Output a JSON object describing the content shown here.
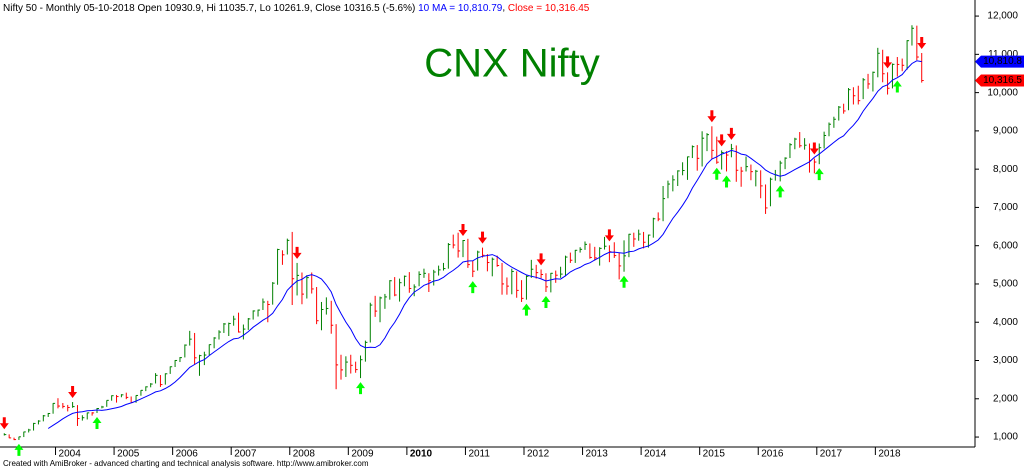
{
  "chart_data": {
    "type": "ohlc",
    "title": "CNX Nifty",
    "header": {
      "info": "Nifty 50 - Monthly 05-10-2018 Open 10930.9, Hi 11035.7, Lo 10261.9, Close 10316.5 (-5.6%)",
      "ma": "10 MA = 10,810.79",
      "close": "Close = 10,316.45"
    },
    "footer": "Created with AmiBroker - advanced charting and technical analysis software. http://www.amibroker.com",
    "ylim": [
      740,
      12420
    ],
    "yticks": [
      {
        "value": 1000,
        "label": "1,000"
      },
      {
        "value": 2000,
        "label": "2,000"
      },
      {
        "value": 3000,
        "label": "3,000"
      },
      {
        "value": 4000,
        "label": "4,000"
      },
      {
        "value": 5000,
        "label": "5,000"
      },
      {
        "value": 6000,
        "label": "6,000"
      },
      {
        "value": 7000,
        "label": "7,000"
      },
      {
        "value": 8000,
        "label": "8,000"
      },
      {
        "value": 9000,
        "label": "9,000"
      },
      {
        "value": 10000,
        "label": "10,000"
      },
      {
        "value": 11000,
        "label": "11,000"
      },
      {
        "value": 12000,
        "label": "12,000"
      }
    ],
    "categories": [
      null,
      null,
      null,
      null,
      null,
      null,
      null,
      null,
      null,
      null,
      null,
      "2004",
      null,
      null,
      null,
      null,
      null,
      null,
      null,
      null,
      null,
      null,
      null,
      "2005",
      null,
      null,
      null,
      null,
      null,
      null,
      null,
      null,
      null,
      null,
      null,
      "2006",
      null,
      null,
      null,
      null,
      null,
      null,
      null,
      null,
      null,
      null,
      null,
      "2007",
      null,
      null,
      null,
      null,
      null,
      null,
      null,
      null,
      null,
      null,
      null,
      "2008",
      null,
      null,
      null,
      null,
      null,
      null,
      null,
      null,
      null,
      null,
      null,
      "2009",
      null,
      null,
      null,
      null,
      null,
      null,
      null,
      null,
      null,
      null,
      null,
      "2010",
      null,
      null,
      null,
      null,
      null,
      null,
      null,
      null,
      null,
      null,
      null,
      "2011",
      null,
      null,
      null,
      null,
      null,
      null,
      null,
      null,
      null,
      null,
      null,
      "2012",
      null,
      null,
      null,
      null,
      null,
      null,
      null,
      null,
      null,
      null,
      null,
      "2013",
      null,
      null,
      null,
      null,
      null,
      null,
      null,
      null,
      null,
      null,
      null,
      "2014",
      null,
      null,
      null,
      null,
      null,
      null,
      null,
      null,
      null,
      null,
      null,
      "2015",
      null,
      null,
      null,
      null,
      null,
      null,
      null,
      null,
      null,
      null,
      null,
      "2016",
      null,
      null,
      null,
      null,
      null,
      null,
      null,
      null,
      null,
      null,
      null,
      "2017",
      null,
      null,
      null,
      null,
      null,
      null,
      null,
      null,
      null,
      null,
      null,
      "2018",
      null,
      null,
      null,
      null,
      null,
      null,
      null,
      null,
      null
    ],
    "high": [
      1100,
      1070,
      985,
      1010,
      1140,
      1215,
      1370,
      1440,
      1575,
      1630,
      1885,
      2015,
      1890,
      1840,
      1915,
      1835,
      1570,
      1640,
      1650,
      1760,
      1815,
      1960,
      2090,
      2100,
      2120,
      2160,
      2060,
      2090,
      2225,
      2325,
      2410,
      2670,
      2620,
      2665,
      2845,
      3010,
      3090,
      3420,
      3775,
      3720,
      3150,
      3230,
      3420,
      3610,
      3790,
      3980,
      3990,
      4170,
      4250,
      3940,
      4110,
      4310,
      4330,
      4620,
      4560,
      5050,
      5920,
      5880,
      6185,
      6360,
      5550,
      5300,
      5230,
      5300,
      4920,
      4530,
      4650,
      4560,
      3950,
      3150,
      3110,
      3150,
      2970,
      3130,
      3520,
      4510,
      4690,
      4670,
      4740,
      5100,
      5180,
      5140,
      5220,
      5310,
      4990,
      5330,
      5400,
      5280,
      5370,
      5480,
      5550,
      6070,
      6290,
      6340,
      6150,
      6180,
      5600,
      5870,
      5950,
      5780,
      5690,
      5740,
      5550,
      5170,
      5400,
      5330,
      5100,
      5220,
      5630,
      5500,
      5380,
      5280,
      5290,
      5350,
      5450,
      5740,
      5820,
      5890,
      5960,
      6110,
      6060,
      5970,
      5960,
      6230,
      6010,
      6090,
      5810,
      6140,
      6310,
      6340,
      6420,
      6360,
      6290,
      6730,
      6870,
      7560,
      7700,
      7840,
      7970,
      8180,
      8330,
      8620,
      8630,
      8990,
      8940,
      9120,
      8850,
      8490,
      8470,
      8660,
      8620,
      8060,
      8330,
      8120,
      7980,
      7970,
      7600,
      7780,
      7980,
      8220,
      8310,
      8680,
      8820,
      8970,
      8810,
      8670,
      8280,
      8670,
      8980,
      9220,
      9370,
      9650,
      9710,
      10120,
      10140,
      10180,
      10380,
      10490,
      10550,
      11170,
      11120,
      10530,
      10760,
      10930,
      10890,
      11370,
      11760,
      11750,
      11035
    ],
    "low": [
      1040,
      970,
      920,
      925,
      1000,
      1120,
      1170,
      1330,
      1410,
      1525,
      1610,
      1750,
      1750,
      1670,
      1765,
      1290,
      1430,
      1460,
      1560,
      1630,
      1750,
      1790,
      1950,
      1900,
      2040,
      1990,
      1900,
      1895,
      2080,
      2200,
      2300,
      2400,
      2310,
      2370,
      2650,
      2830,
      2960,
      3080,
      3390,
      2890,
      2600,
      2880,
      3140,
      3320,
      3550,
      3720,
      3640,
      3910,
      3730,
      3550,
      3800,
      4070,
      4150,
      4320,
      4000,
      4460,
      4980,
      5500,
      5770,
      4450,
      4700,
      4470,
      4620,
      4750,
      3950,
      3790,
      4200,
      3700,
      2250,
      2500,
      2570,
      2660,
      2680,
      2540,
      2970,
      3470,
      4140,
      4000,
      4350,
      4590,
      4680,
      4540,
      4940,
      4770,
      4680,
      4940,
      5160,
      4790,
      4960,
      5220,
      5350,
      5400,
      5930,
      5690,
      5700,
      5420,
      5180,
      5350,
      5690,
      5330,
      5200,
      5450,
      4720,
      4720,
      4730,
      4640,
      4530,
      4590,
      5160,
      5140,
      5150,
      4790,
      4780,
      5030,
      5160,
      5200,
      5550,
      5550,
      5820,
      5890,
      5660,
      5610,
      5480,
      5900,
      5570,
      5680,
      5120,
      5320,
      5700,
      5970,
      6130,
      5930,
      5950,
      6210,
      6640,
      6640,
      7240,
      7420,
      7560,
      7840,
      7720,
      8290,
      7960,
      8070,
      8470,
      8270,
      8140,
      7990,
      7940,
      8310,
      7670,
      7540,
      7940,
      7710,
      7550,
      7240,
      6830,
      7030,
      7700,
      7680,
      8000,
      8290,
      8520,
      8560,
      8510,
      7910,
      7890,
      8130,
      8540,
      8860,
      9080,
      9270,
      9450,
      9540,
      9690,
      9690,
      9830,
      10100,
      10030,
      10400,
      10270,
      9950,
      10110,
      10420,
      10560,
      10600,
      11230,
      10850,
      10262
    ],
    "close": [
      1064,
      978,
      934,
      1006,
      1134,
      1185,
      1356,
      1418,
      1555,
      1615,
      1880,
      1810,
      1800,
      1772,
      1796,
      1484,
      1505,
      1632,
      1631,
      1746,
      1786,
      1959,
      2080,
      2058,
      2103,
      2036,
      1902,
      2087,
      2221,
      2312,
      2385,
      2612,
      2371,
      2653,
      2837,
      3001,
      3075,
      3403,
      3558,
      3071,
      3128,
      3143,
      3414,
      3588,
      3744,
      3955,
      3966,
      4082,
      3745,
      3821,
      4087,
      4295,
      4318,
      4528,
      4464,
      5021,
      5900,
      5762,
      6139,
      5137,
      5224,
      4735,
      5166,
      4870,
      4040,
      4333,
      4360,
      3921,
      2886,
      2755,
      2959,
      2874,
      2763,
      3021,
      3474,
      4449,
      4291,
      4636,
      4662,
      5084,
      4712,
      5033,
      5201,
      4882,
      4922,
      5249,
      5278,
      5087,
      5313,
      5368,
      5402,
      6030,
      6018,
      5863,
      6135,
      5506,
      5333,
      5834,
      5750,
      5560,
      5647,
      5482,
      5001,
      4943,
      5327,
      4832,
      4624,
      5199,
      5385,
      5296,
      5248,
      4924,
      5279,
      5229,
      5258,
      5703,
      5620,
      5880,
      5905,
      6035,
      5693,
      5682,
      5930,
      5986,
      5843,
      5742,
      5472,
      5735,
      6299,
      6176,
      6304,
      6090,
      6277,
      6704,
      6696,
      7230,
      7611,
      7721,
      7954,
      7965,
      8322,
      8588,
      8283,
      8809,
      8902,
      8491,
      8182,
      8434,
      8369,
      8533,
      7971,
      7949,
      8066,
      7935,
      7946,
      7563,
      6987,
      7738,
      7850,
      8160,
      8288,
      8639,
      8786,
      8611,
      8626,
      8224,
      8186,
      8561,
      8880,
      9174,
      9304,
      9621,
      9521,
      10077,
      9918,
      9789,
      10335,
      10227,
      10531,
      11028,
      10493,
      10114,
      10739,
      10736,
      10714,
      11357,
      11681,
      10930,
      10316
    ],
    "ma_period": 10,
    "sell_signals": [
      0,
      14,
      60,
      94,
      98,
      110,
      124,
      145,
      147,
      149,
      166,
      181,
      188
    ],
    "buy_signals": [
      3,
      19,
      73,
      96,
      107,
      111,
      127,
      146,
      148,
      159,
      167,
      183
    ],
    "price_labels": [
      {
        "value": 10810.8,
        "label": "10,810.8",
        "color": "#0000ff"
      },
      {
        "value": 10316.5,
        "label": "10,316.5",
        "color": "#ff0000"
      }
    ],
    "colors": {
      "up": "#008000",
      "down": "#ff0000",
      "ma": "#0000ff",
      "buy": "#00ff00",
      "sell": "#ff0000",
      "title": "#008000"
    }
  }
}
